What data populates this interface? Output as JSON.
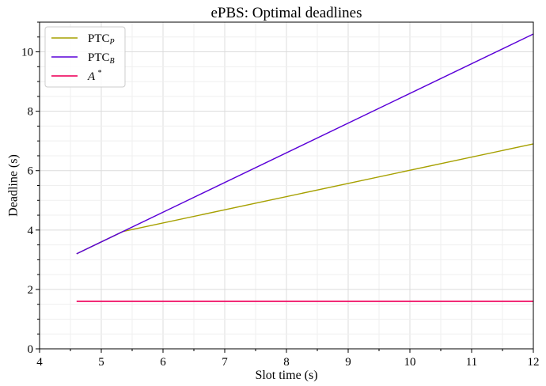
{
  "chart_data": {
    "type": "line",
    "title": "ePBS: Optimal deadlines",
    "xlabel": "Slot time (s)",
    "ylabel": "Deadline (s)",
    "xlim": [
      4,
      12
    ],
    "ylim": [
      0,
      11
    ],
    "xticks": [
      4,
      5,
      6,
      7,
      8,
      9,
      10,
      11,
      12
    ],
    "yticks": [
      0,
      2,
      4,
      6,
      8,
      10
    ],
    "xtick_labels": [
      "4",
      "5",
      "6",
      "7",
      "8",
      "9",
      "10",
      "11",
      "12"
    ],
    "ytick_labels": [
      "0",
      "2",
      "4",
      "6",
      "8",
      "10"
    ],
    "grid": true,
    "legend_position": "top-left",
    "series": [
      {
        "name": "PTC",
        "name_sub": "P",
        "color": "#a6a000",
        "x": [
          4.6,
          5.35,
          12
        ],
        "y": [
          3.2,
          3.95,
          6.9
        ]
      },
      {
        "name": "PTC",
        "name_sub": "B",
        "color": "#5a00d8",
        "x": [
          4.6,
          12
        ],
        "y": [
          3.2,
          10.6
        ]
      },
      {
        "name": "A",
        "name_sup": "*",
        "color": "#f0186a",
        "x": [
          4.6,
          12
        ],
        "y": [
          1.6,
          1.6
        ]
      }
    ]
  }
}
